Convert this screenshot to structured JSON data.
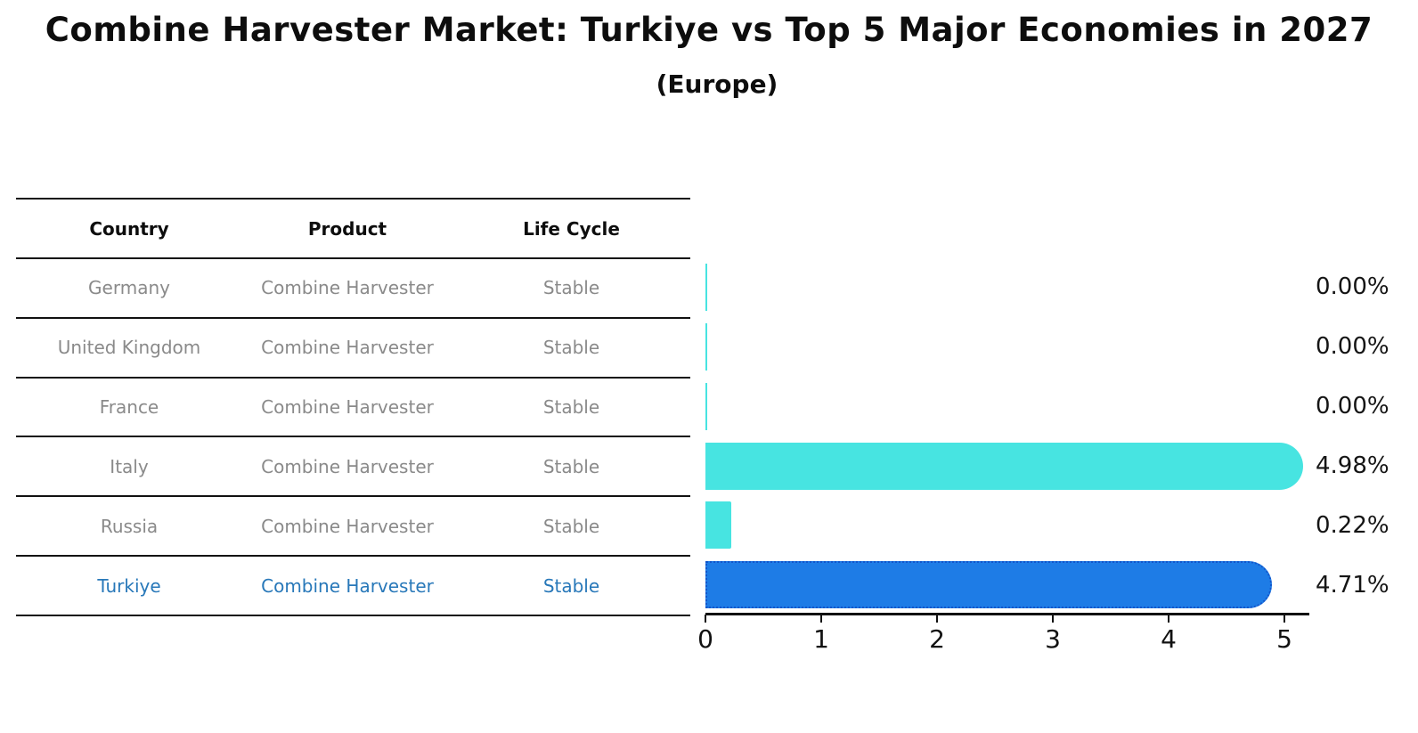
{
  "title": "Combine Harvester Market: Turkiye vs Top 5 Major Economies in 2027",
  "subtitle": "(Europe)",
  "table": {
    "headers": [
      "Country",
      "Product",
      "Life Cycle"
    ],
    "rows": [
      {
        "country": "Germany",
        "product": "Combine Harvester",
        "life_cycle": "Stable"
      },
      {
        "country": "United Kingdom",
        "product": "Combine Harvester",
        "life_cycle": "Stable"
      },
      {
        "country": "France",
        "product": "Combine Harvester",
        "life_cycle": "Stable"
      },
      {
        "country": "Italy",
        "product": "Combine Harvester",
        "life_cycle": "Stable"
      },
      {
        "country": "Russia",
        "product": "Combine Harvester",
        "life_cycle": "Stable"
      },
      {
        "country": "Turkiye",
        "product": "Combine Harvester",
        "life_cycle": "Stable"
      }
    ]
  },
  "chart_data": {
    "type": "bar",
    "orientation": "horizontal",
    "title": "Combine Harvester Market: Turkiye vs Top 5 Major Economies in 2027",
    "subtitle": "(Europe)",
    "categories": [
      "Germany",
      "United Kingdom",
      "France",
      "Italy",
      "Russia",
      "Turkiye"
    ],
    "values": [
      0.0,
      0.0,
      0.0,
      4.98,
      0.22,
      4.71
    ],
    "value_labels": [
      "0.00%",
      "0.00%",
      "0.00%",
      "4.98%",
      "0.22%",
      "4.71%"
    ],
    "unit": "%",
    "x_ticks": [
      "0",
      "1",
      "2",
      "3",
      "4",
      "5"
    ],
    "xlim": [
      0,
      5.2
    ],
    "grid": false,
    "legend": false,
    "highlight_index": 5,
    "colors": {
      "bar": "#47E4E1",
      "highlight_bar": "#1E7CE6",
      "highlight_bar_border": "#1356CB",
      "highlight_text": "#2878B9",
      "table_text": "#8A8A8A",
      "header_text": "#0D0D0D",
      "axis": "#111111"
    }
  }
}
